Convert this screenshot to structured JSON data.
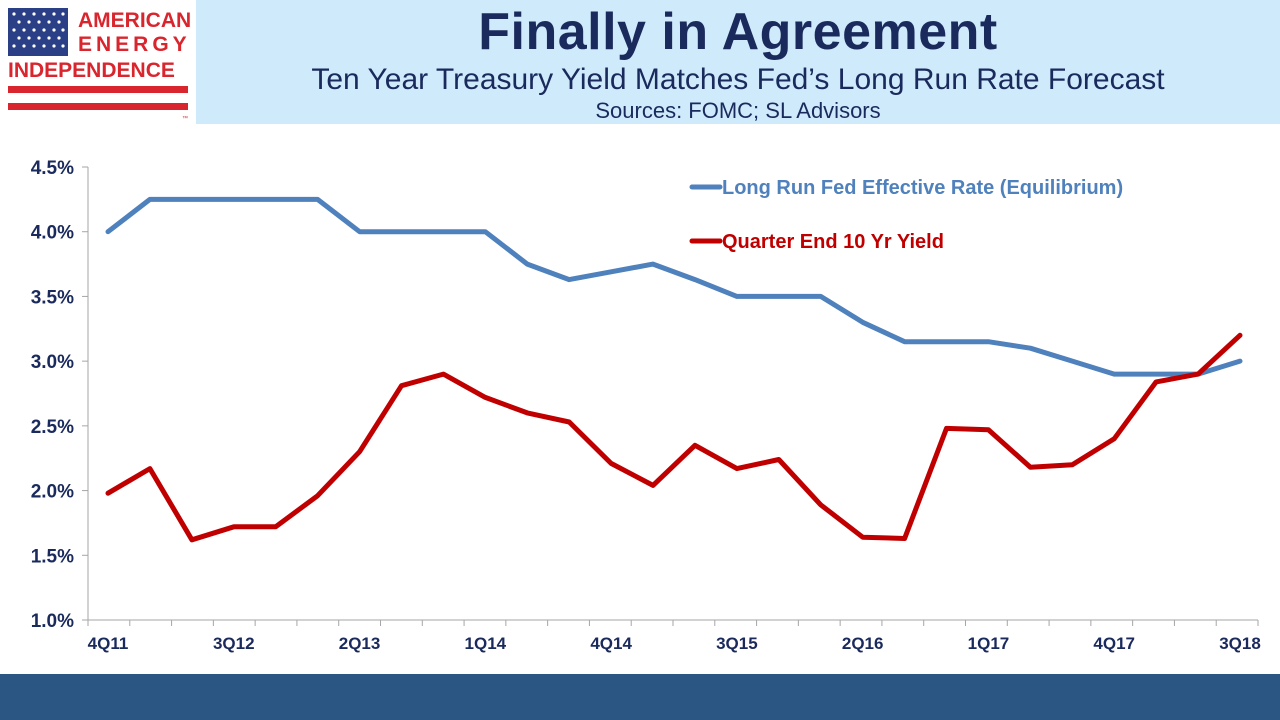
{
  "logo": {
    "line1": "AMERICAN",
    "line2": "ENERGY",
    "line3": "INDEPENDENCE",
    "tm": "™"
  },
  "header": {
    "title": "Finally in Agreement",
    "subtitle": "Ten Year Treasury Yield Matches Fed’s Long Run Rate Forecast",
    "sources": "Sources: FOMC; SL Advisors"
  },
  "colors": {
    "brand_red": "#d9262e",
    "navy": "#1a2a5c",
    "header_bg": "#cfeafb",
    "footer": "#2b5683",
    "series_fed": "#4f81bd",
    "series_10yr": "#c00000"
  },
  "chart_data": {
    "type": "line",
    "title": "Finally in Agreement",
    "xlabel": "",
    "ylabel": "",
    "ylim": [
      1.0,
      4.5
    ],
    "yticks": [
      "1.0%",
      "1.5%",
      "2.0%",
      "2.5%",
      "3.0%",
      "3.5%",
      "4.0%",
      "4.5%"
    ],
    "ytick_values": [
      1.0,
      1.5,
      2.0,
      2.5,
      3.0,
      3.5,
      4.0,
      4.5
    ],
    "categories": [
      "4Q11",
      "1Q12",
      "2Q12",
      "3Q12",
      "4Q12",
      "1Q13",
      "2Q13",
      "3Q13",
      "4Q13",
      "1Q14",
      "2Q14",
      "3Q14",
      "4Q14",
      "1Q15",
      "2Q15",
      "3Q15",
      "4Q15",
      "1Q16",
      "2Q16",
      "3Q16",
      "4Q16",
      "1Q17",
      "2Q17",
      "3Q17",
      "4Q17",
      "1Q18",
      "2Q18",
      "3Q18"
    ],
    "xtick_labels": [
      "4Q11",
      "",
      "",
      "3Q12",
      "",
      "",
      "2Q13",
      "",
      "",
      "1Q14",
      "",
      "",
      "4Q14",
      "",
      "",
      "3Q15",
      "",
      "",
      "2Q16",
      "",
      "",
      "1Q17",
      "",
      "",
      "4Q17",
      "",
      "",
      "3Q18"
    ],
    "legend": "top-right",
    "series": [
      {
        "name": "Long Run Fed Effective Rate (Equilibrium)",
        "color": "#4f81bd",
        "values": [
          4.0,
          4.25,
          4.25,
          4.25,
          4.25,
          4.25,
          4.0,
          4.0,
          4.0,
          4.0,
          3.75,
          3.63,
          3.69,
          3.75,
          3.63,
          3.5,
          3.5,
          3.5,
          3.3,
          3.15,
          3.15,
          3.15,
          3.1,
          3.0,
          2.9,
          2.9,
          2.9,
          3.0
        ]
      },
      {
        "name": "Quarter End 10 Yr Yield",
        "color": "#c00000",
        "values": [
          1.98,
          2.17,
          1.62,
          1.72,
          1.72,
          1.96,
          2.3,
          2.81,
          2.9,
          2.72,
          2.6,
          2.53,
          2.21,
          2.04,
          2.35,
          2.17,
          2.24,
          1.89,
          1.64,
          1.63,
          2.48,
          2.47,
          2.18,
          2.2,
          2.4,
          2.84,
          2.9,
          3.2
        ]
      }
    ]
  }
}
